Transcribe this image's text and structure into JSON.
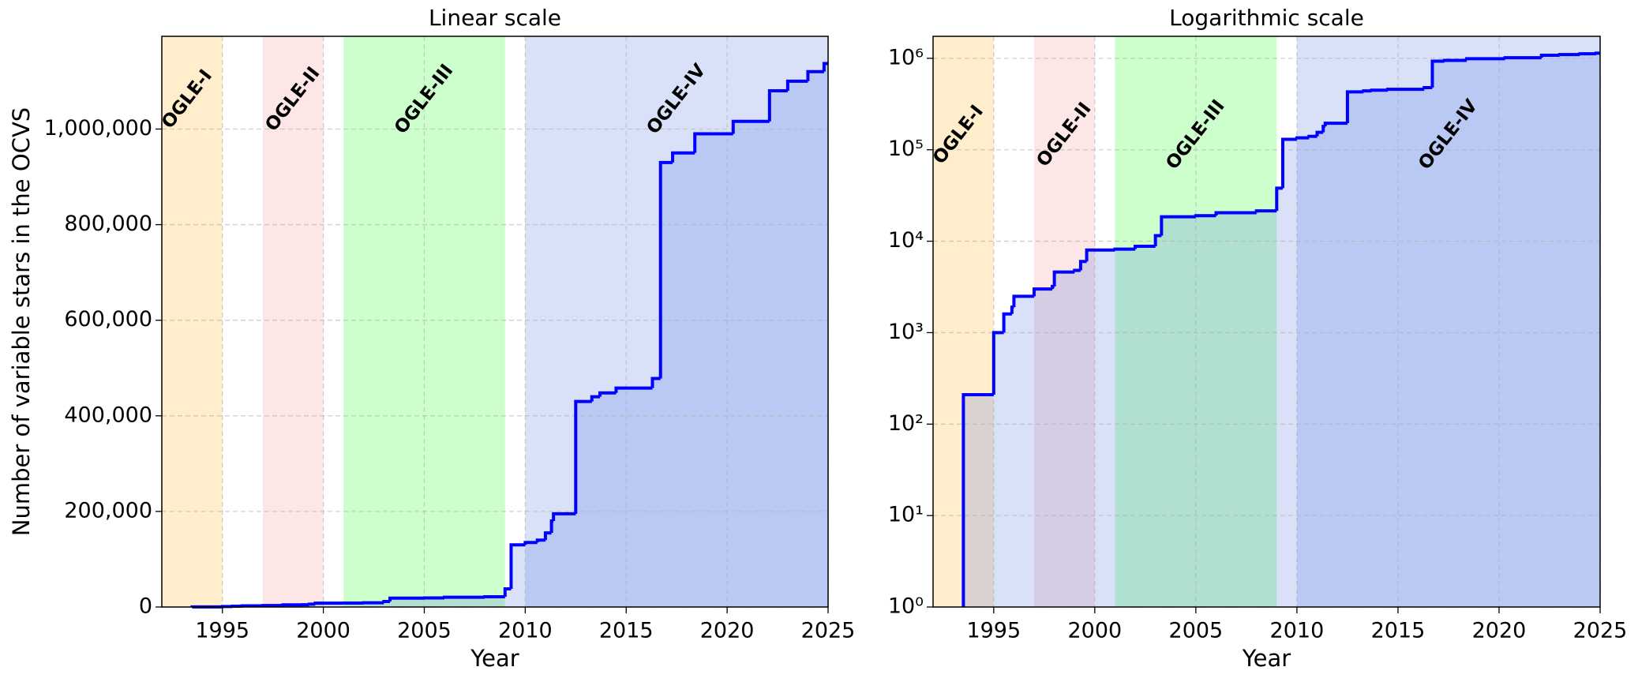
{
  "chart_data": [
    {
      "type": "line",
      "title": "Linear scale",
      "xlabel": "Year",
      "ylabel": "Number of variable stars in the OCVS",
      "yscale": "linear",
      "step": "post",
      "grid": true,
      "color": "#0000ff",
      "area_color": "#4169e1",
      "x": [
        1993.5,
        1995,
        1995.5,
        1995.9,
        1996,
        1997,
        1997.9,
        1998,
        1999,
        1999.3,
        1999.6,
        2001,
        2002,
        2003,
        2003.3,
        2005,
        2006,
        2008,
        2009,
        2009.3,
        2010,
        2010.6,
        2011,
        2011.3,
        2011.4,
        2012.5,
        2013.3,
        2013.7,
        2014.5,
        2016.3,
        2016.7,
        2017.3,
        2018.4,
        2020.3,
        2022.1,
        2023,
        2024,
        2024.8
      ],
      "values": [
        210,
        1000,
        1600,
        1900,
        2500,
        3000,
        3200,
        4600,
        4800,
        6000,
        8000,
        8200,
        8800,
        11500,
        18500,
        19000,
        20500,
        21500,
        38000,
        130000,
        135000,
        140000,
        155000,
        180000,
        195000,
        430000,
        440000,
        448000,
        458000,
        478000,
        930000,
        950000,
        990000,
        1016000,
        1080000,
        1100000,
        1120000,
        1137000
      ],
      "xlim": [
        1992,
        2025
      ],
      "xticks": [
        1995,
        2000,
        2005,
        2010,
        2015,
        2020,
        2025
      ],
      "ylim": [
        0,
        1194000
      ],
      "yticks": [
        0,
        {
          "value": 200000,
          "label": "200,000"
        },
        {
          "value": 400000,
          "label": "400,000"
        },
        {
          "value": 600000,
          "label": "600,000"
        },
        {
          "value": 800000,
          "label": "800,000"
        },
        {
          "value": 1000000,
          "label": "1,000,000"
        }
      ],
      "spans": [
        {
          "label": "OGLE-I",
          "start": 1992,
          "end": 1995,
          "color": "#ffa500"
        },
        {
          "label": "OGLE-II",
          "start": 1997,
          "end": 2000,
          "color": "#f08080"
        },
        {
          "label": "OGLE-III",
          "start": 2001,
          "end": 2009,
          "color": "#00ff00"
        },
        {
          "label": "OGLE-IV",
          "start": 2010,
          "end": 2025,
          "color": "#4169e1"
        }
      ]
    },
    {
      "type": "line",
      "title": "Logarithmic scale",
      "xlabel": "Year",
      "yscale": "log",
      "step": "post",
      "grid": true,
      "color": "#0000ff",
      "area_color": "#4169e1",
      "x": [
        1993.5,
        1995,
        1995.5,
        1995.9,
        1996,
        1997,
        1997.9,
        1998,
        1999,
        1999.3,
        1999.6,
        2001,
        2002,
        2003,
        2003.3,
        2005,
        2006,
        2008,
        2009,
        2009.3,
        2010,
        2010.6,
        2011,
        2011.3,
        2011.4,
        2012.5,
        2013.3,
        2013.7,
        2014.5,
        2016.3,
        2016.7,
        2017.3,
        2018.4,
        2020.3,
        2022.1,
        2023,
        2024,
        2024.8
      ],
      "values": [
        210,
        1000,
        1600,
        1900,
        2500,
        3000,
        3200,
        4600,
        4800,
        6000,
        8000,
        8200,
        8800,
        11500,
        18500,
        19000,
        20500,
        21500,
        38000,
        130000,
        135000,
        140000,
        155000,
        180000,
        195000,
        430000,
        440000,
        448000,
        458000,
        478000,
        930000,
        950000,
        990000,
        1016000,
        1080000,
        1100000,
        1120000,
        1137000
      ],
      "xlim": [
        1992,
        2025
      ],
      "xticks": [
        1995,
        2000,
        2005,
        2010,
        2015,
        2020,
        2025
      ],
      "ylim": [
        1,
        1740000
      ],
      "yticks": [
        {
          "value": 1,
          "label": "10⁰"
        },
        {
          "value": 10,
          "label": "10¹"
        },
        {
          "value": 100,
          "label": "10²"
        },
        {
          "value": 1000,
          "label": "10³"
        },
        {
          "value": 10000,
          "label": "10⁴"
        },
        {
          "value": 100000,
          "label": "10⁵"
        },
        {
          "value": 1000000,
          "label": "10⁶"
        }
      ],
      "spans": [
        {
          "label": "OGLE-I",
          "start": 1992,
          "end": 1995,
          "color": "#ffa500"
        },
        {
          "label": "OGLE-II",
          "start": 1997,
          "end": 2000,
          "color": "#f08080"
        },
        {
          "label": "OGLE-III",
          "start": 2001,
          "end": 2009,
          "color": "#00ff00"
        },
        {
          "label": "OGLE-IV",
          "start": 2010,
          "end": 2025,
          "color": "#4169e1"
        }
      ]
    }
  ]
}
